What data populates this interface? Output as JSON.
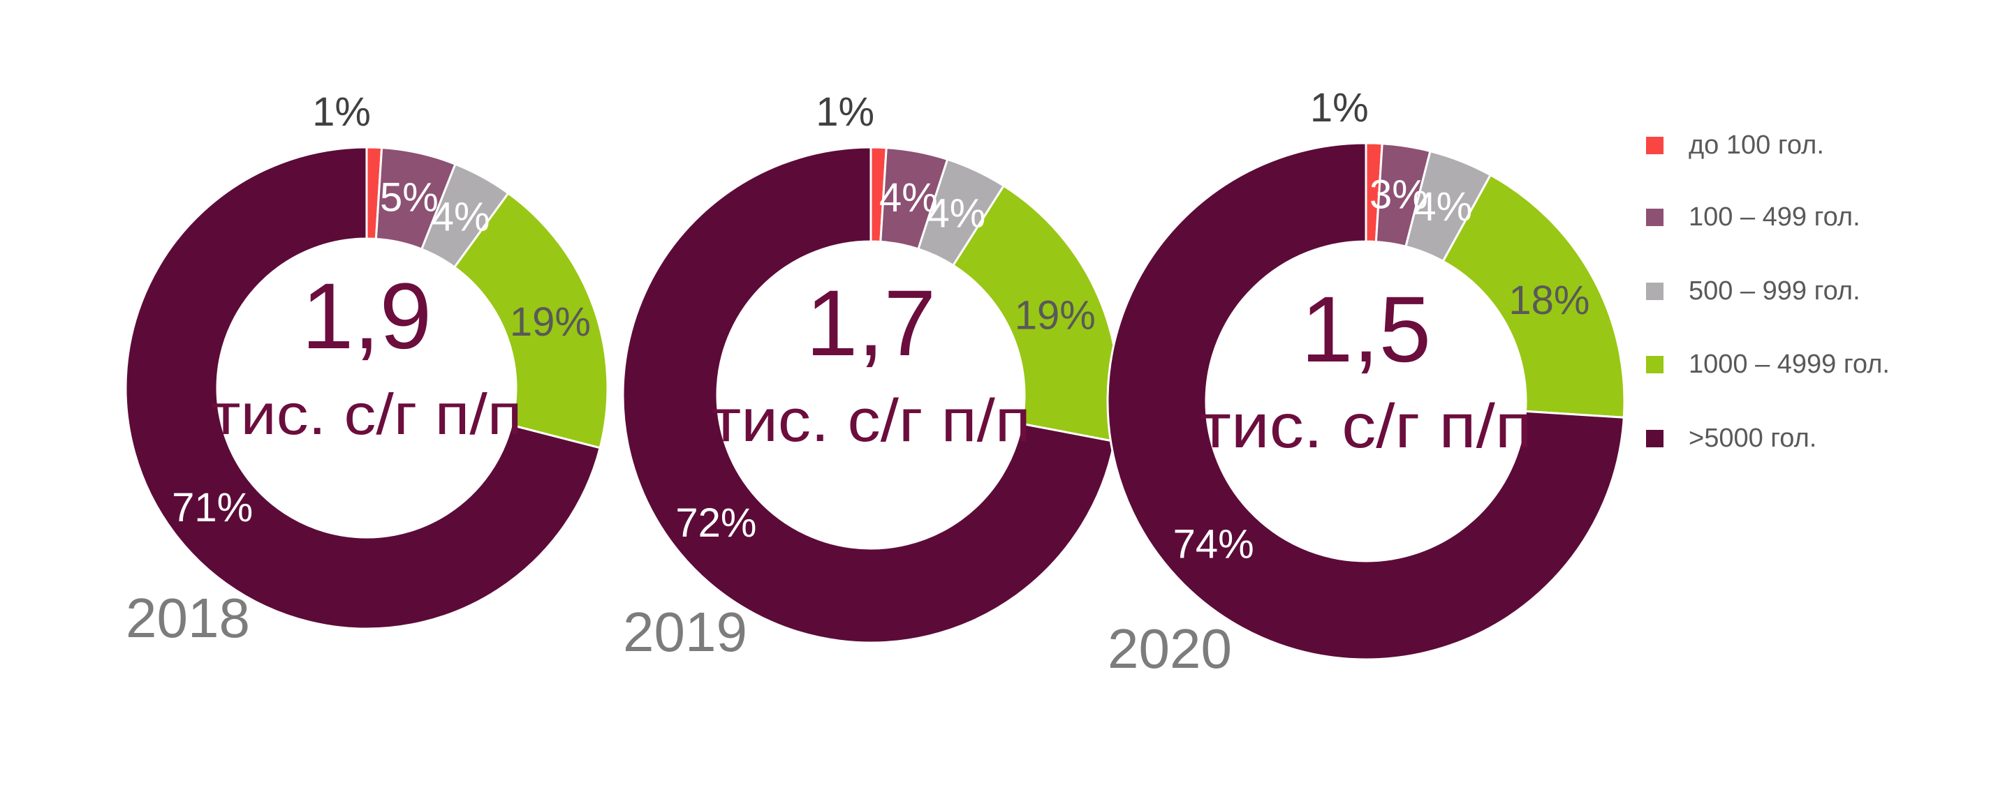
{
  "colors": {
    "background": "#ffffff",
    "slice_colors": [
      "#fa4642",
      "#8d5173",
      "#afadaf",
      "#99c715",
      "#5c0b38"
    ],
    "percent_label_colors": [
      "#404040",
      "#ffffff",
      "#ffffff",
      "#595959",
      "#ffffff"
    ],
    "center_text": "#6b0d3d",
    "year_label": "#7c7c7c",
    "legend_text": "#595959",
    "slice_gap_stroke": "#ffffff"
  },
  "legend": {
    "position": "right",
    "items": [
      {
        "label": "до 100 гол."
      },
      {
        "label": "100 – 499 гол."
      },
      {
        "label": "500 – 999 гол."
      },
      {
        "label": "1000 – 4999 гол."
      },
      {
        "label": ">5000 гол."
      }
    ]
  },
  "chart_data": {
    "type": "pie",
    "variant": "donut",
    "start_angle_deg": 0,
    "direction": "clockwise",
    "legend_position": "right",
    "categories": [
      "до 100 гол.",
      "100 – 499 гол.",
      "500 – 999 гол.",
      "1000 – 4999 гол.",
      ">5000 гол."
    ],
    "series": [
      {
        "name": "2018",
        "values": [
          1,
          5,
          4,
          19,
          71
        ],
        "percent_labels": [
          "1%",
          "5%",
          "4%",
          "19%",
          "71%"
        ],
        "center_value": "1,9",
        "center_unit": "тис. с/г п/п"
      },
      {
        "name": "2019",
        "values": [
          1,
          4,
          4,
          19,
          72
        ],
        "percent_labels": [
          "1%",
          "4%",
          "4%",
          "19%",
          "72%"
        ],
        "center_value": "1,7",
        "center_unit": "тис. с/г п/п"
      },
      {
        "name": "2020",
        "values": [
          1,
          3,
          4,
          18,
          74
        ],
        "percent_labels": [
          "1%",
          "3%",
          "4%",
          "18%",
          "74%"
        ],
        "center_value": "1,5",
        "center_unit": "тис. с/г п/п"
      }
    ]
  }
}
